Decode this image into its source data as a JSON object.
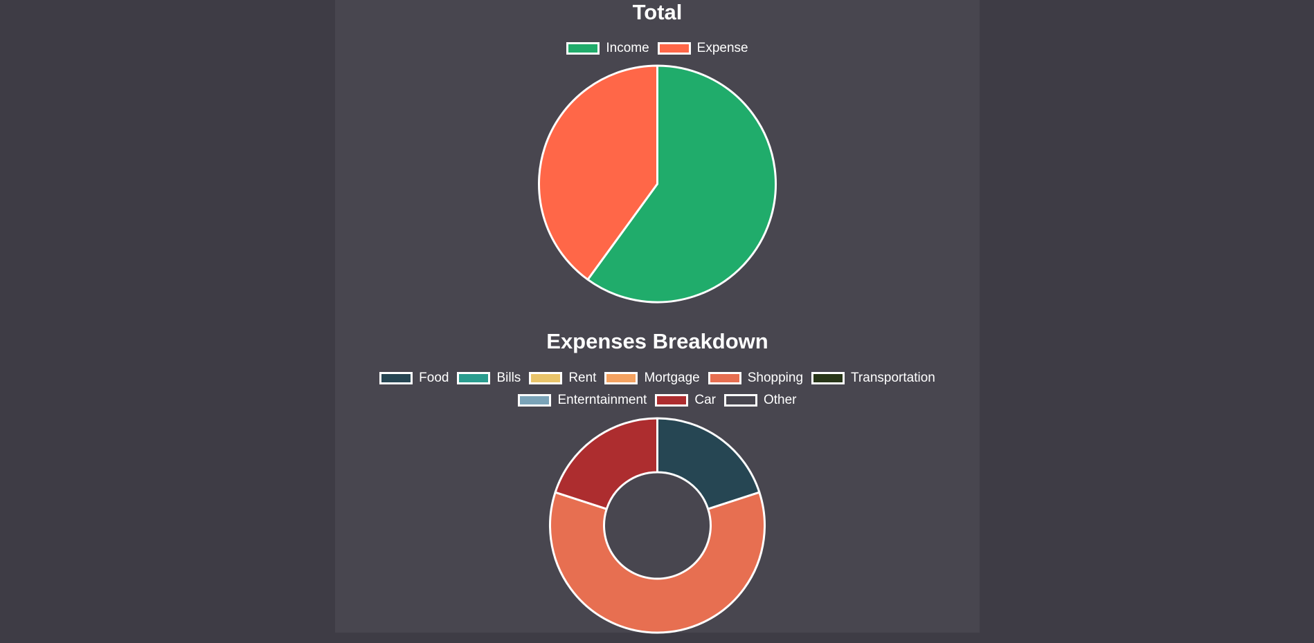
{
  "chart_data": [
    {
      "type": "pie",
      "title": "Total",
      "categories": [
        "Income",
        "Expense"
      ],
      "values": [
        60,
        40
      ],
      "colors": [
        "#20ac6b",
        "#ff6748"
      ],
      "legend": "top",
      "grid": false
    },
    {
      "type": "doughnut",
      "title": "Expenses Breakdown",
      "categories": [
        "Food",
        "Bills",
        "Rent",
        "Mortgage",
        "Shopping",
        "Transportation",
        "Enterntainment",
        "Car",
        "Other"
      ],
      "values": [
        20,
        0,
        0,
        0,
        60,
        0,
        0,
        20,
        0
      ],
      "colors": [
        "#264653",
        "#2a9d8f",
        "#e9c46a",
        "#f4a261",
        "#e76f51",
        "#283618",
        "#7aa3b8",
        "#ad2d2f",
        "#48464f"
      ],
      "legend": "top",
      "grid": false
    }
  ]
}
